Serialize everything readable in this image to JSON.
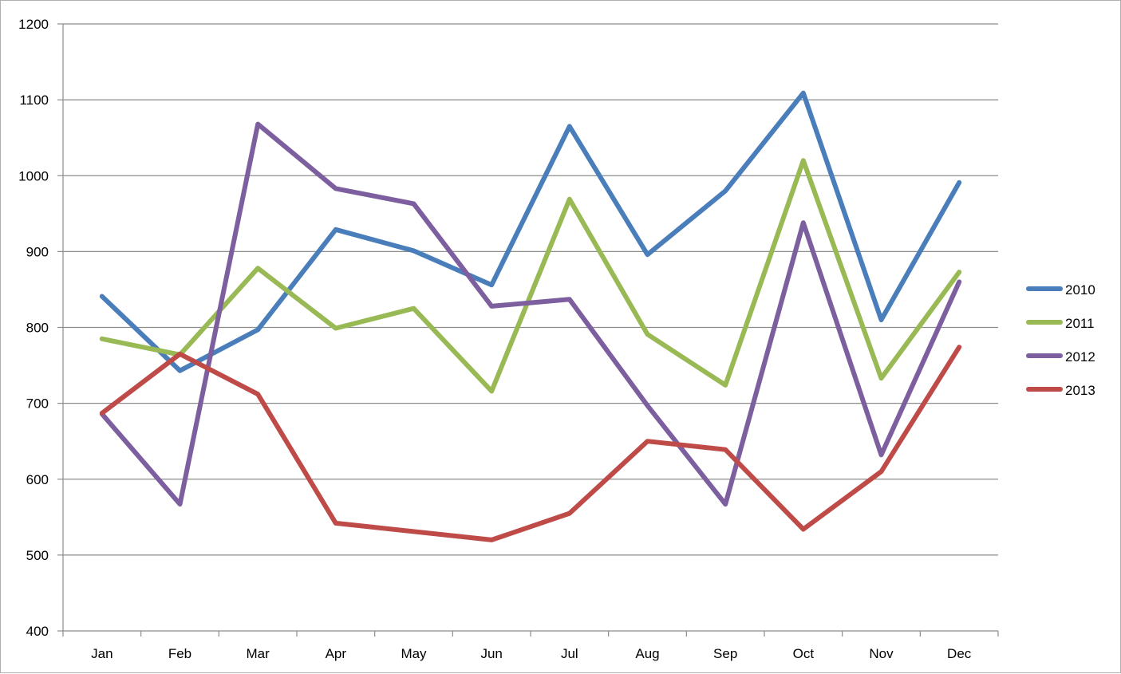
{
  "chart_data": {
    "type": "line",
    "title": "",
    "xlabel": "",
    "ylabel": "",
    "categories": [
      "Jan",
      "Feb",
      "Mar",
      "Apr",
      "May",
      "Jun",
      "Jul",
      "Aug",
      "Sep",
      "Oct",
      "Nov",
      "Dec"
    ],
    "ylim": [
      400,
      1200
    ],
    "yticks": [
      400,
      500,
      600,
      700,
      800,
      900,
      1000,
      1100,
      1200
    ],
    "grid": true,
    "legend_position": "right",
    "series": [
      {
        "name": "2010",
        "color": "#4a7ebb",
        "values": [
          841,
          743,
          797,
          929,
          901,
          856,
          1065,
          896,
          980,
          1109,
          810,
          991
        ]
      },
      {
        "name": "2011",
        "color": "#98b954",
        "values": [
          785,
          764,
          878,
          799,
          825,
          716,
          969,
          791,
          724,
          1020,
          733,
          873
        ]
      },
      {
        "name": "2012",
        "color": "#7d5fa0",
        "values": [
          686,
          567,
          1068,
          983,
          963,
          828,
          837,
          697,
          567,
          938,
          632,
          860
        ]
      },
      {
        "name": "2013",
        "color": "#be4b48",
        "values": [
          687,
          765,
          712,
          542,
          null,
          520,
          555,
          650,
          639,
          534,
          610,
          774
        ]
      }
    ]
  }
}
